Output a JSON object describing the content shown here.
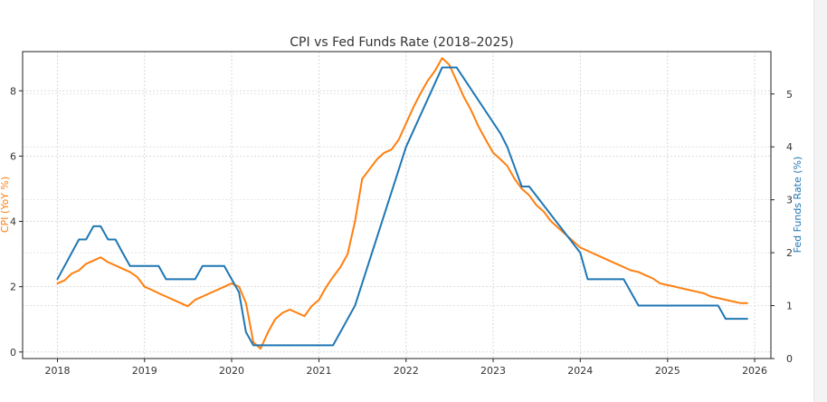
{
  "chart_data": {
    "type": "line",
    "title": "CPI vs Fed Funds Rate (2018–2025)",
    "xlabel": "",
    "left_axis": {
      "label": "CPI (YoY %)",
      "ylim": [
        -0.2,
        9.2
      ],
      "ticks": [
        0,
        2,
        4,
        6,
        8
      ],
      "color": "#ff7f0e"
    },
    "right_axis": {
      "label": "Fed Funds Rate (%)",
      "ylim": [
        0,
        5.8
      ],
      "ticks": [
        0,
        1,
        2,
        3,
        4,
        5
      ],
      "color": "#1f77b4"
    },
    "x_axis": {
      "range": [
        "2017-08-08",
        "2026-03-10"
      ],
      "ticks": [
        {
          "date": "2018-01-01",
          "label": "2018"
        },
        {
          "date": "2019-01-01",
          "label": "2019"
        },
        {
          "date": "2020-01-01",
          "label": "2020"
        },
        {
          "date": "2021-01-01",
          "label": "2021"
        },
        {
          "date": "2022-01-01",
          "label": "2022"
        },
        {
          "date": "2023-01-01",
          "label": "2023"
        },
        {
          "date": "2024-01-01",
          "label": "2024"
        },
        {
          "date": "2025-01-01",
          "label": "2025"
        },
        {
          "date": "2026-01-01",
          "label": "2026"
        }
      ]
    },
    "grid": true,
    "series": [
      {
        "name": "CPI",
        "axis": "left",
        "color": "#ff7f0e",
        "x": [
          "2018-01-01",
          "2018-02-01",
          "2018-03-01",
          "2018-04-01",
          "2018-05-01",
          "2018-06-01",
          "2018-07-01",
          "2018-08-01",
          "2018-09-01",
          "2018-10-01",
          "2018-11-01",
          "2018-12-01",
          "2019-01-01",
          "2019-02-01",
          "2019-03-01",
          "2019-04-01",
          "2019-05-01",
          "2019-06-01",
          "2019-07-01",
          "2019-08-01",
          "2019-09-01",
          "2019-10-01",
          "2019-11-01",
          "2019-12-01",
          "2020-01-01",
          "2020-02-01",
          "2020-03-01",
          "2020-04-01",
          "2020-05-01",
          "2020-06-01",
          "2020-07-01",
          "2020-08-01",
          "2020-09-01",
          "2020-10-01",
          "2020-11-01",
          "2020-12-01",
          "2021-01-01",
          "2021-02-01",
          "2021-03-01",
          "2021-04-01",
          "2021-05-01",
          "2021-06-01",
          "2021-07-01",
          "2021-08-01",
          "2021-09-01",
          "2021-10-01",
          "2021-11-01",
          "2021-12-01",
          "2022-01-01",
          "2022-02-01",
          "2022-03-01",
          "2022-04-01",
          "2022-05-01",
          "2022-06-01",
          "2022-07-01",
          "2022-08-01",
          "2022-09-01",
          "2022-10-01",
          "2022-11-01",
          "2022-12-01",
          "2023-01-01",
          "2023-02-01",
          "2023-03-01",
          "2023-04-01",
          "2023-05-01",
          "2023-06-01",
          "2023-07-01",
          "2023-08-01",
          "2023-09-01",
          "2023-10-01",
          "2023-11-01",
          "2023-12-01",
          "2024-01-01",
          "2024-02-01",
          "2024-03-01",
          "2024-04-01",
          "2024-05-01",
          "2024-06-01",
          "2024-07-01",
          "2024-08-01",
          "2024-09-01",
          "2024-10-01",
          "2024-11-01",
          "2024-12-01",
          "2025-01-01",
          "2025-02-01",
          "2025-03-01",
          "2025-04-01",
          "2025-05-01",
          "2025-06-01",
          "2025-07-01",
          "2025-08-01",
          "2025-09-01",
          "2025-10-01",
          "2025-11-01",
          "2025-12-01"
        ],
        "values": [
          2.1,
          2.2,
          2.4,
          2.5,
          2.7,
          2.8,
          2.9,
          2.75,
          2.65,
          2.55,
          2.45,
          2.3,
          2.0,
          1.9,
          1.8,
          1.7,
          1.6,
          1.5,
          1.4,
          1.6,
          1.7,
          1.8,
          1.9,
          2.0,
          2.1,
          2.0,
          1.5,
          0.3,
          0.1,
          0.6,
          1.0,
          1.2,
          1.3,
          1.2,
          1.1,
          1.4,
          1.6,
          2.0,
          2.3,
          2.6,
          3.0,
          4.0,
          5.3,
          5.6,
          5.9,
          6.1,
          6.2,
          6.5,
          7.0,
          7.5,
          7.9,
          8.3,
          8.6,
          9.0,
          8.8,
          8.3,
          7.8,
          7.4,
          6.9,
          6.5,
          6.1,
          5.9,
          5.7,
          5.3,
          5.0,
          4.8,
          4.5,
          4.3,
          4.0,
          3.8,
          3.6,
          3.4,
          3.2,
          3.1,
          3.0,
          2.9,
          2.8,
          2.7,
          2.6,
          2.5,
          2.45,
          2.35,
          2.25,
          2.1,
          2.05,
          2.0,
          1.95,
          1.9,
          1.85,
          1.8,
          1.7,
          1.65,
          1.6,
          1.55,
          1.5,
          1.5
        ]
      },
      {
        "name": "Fed Funds Rate",
        "axis": "right",
        "color": "#1f77b4",
        "x": [
          "2018-01-01",
          "2018-04-01",
          "2018-05-01",
          "2018-06-01",
          "2018-07-01",
          "2018-08-01",
          "2018-09-01",
          "2018-10-01",
          "2018-11-01",
          "2019-03-01",
          "2019-04-01",
          "2019-08-01",
          "2019-09-01",
          "2019-12-01",
          "2020-02-01",
          "2020-03-01",
          "2020-04-01",
          "2020-05-01",
          "2021-03-01",
          "2021-06-01",
          "2022-01-01",
          "2022-06-01",
          "2022-08-01",
          "2023-02-01",
          "2023-03-01",
          "2023-05-01",
          "2023-06-01",
          "2024-01-01",
          "2024-02-01",
          "2024-07-01",
          "2024-09-01",
          "2025-08-01",
          "2025-09-01",
          "2025-12-01"
        ],
        "values": [
          1.5,
          2.25,
          2.25,
          2.5,
          2.5,
          2.25,
          2.25,
          2.0,
          1.75,
          1.75,
          1.5,
          1.5,
          1.75,
          1.75,
          1.25,
          0.5,
          0.25,
          0.25,
          0.25,
          1.0,
          4.0,
          5.5,
          5.5,
          4.25,
          4.0,
          3.25,
          3.25,
          2.0,
          1.5,
          1.5,
          1.0,
          1.0,
          0.75,
          0.75
        ]
      }
    ]
  }
}
